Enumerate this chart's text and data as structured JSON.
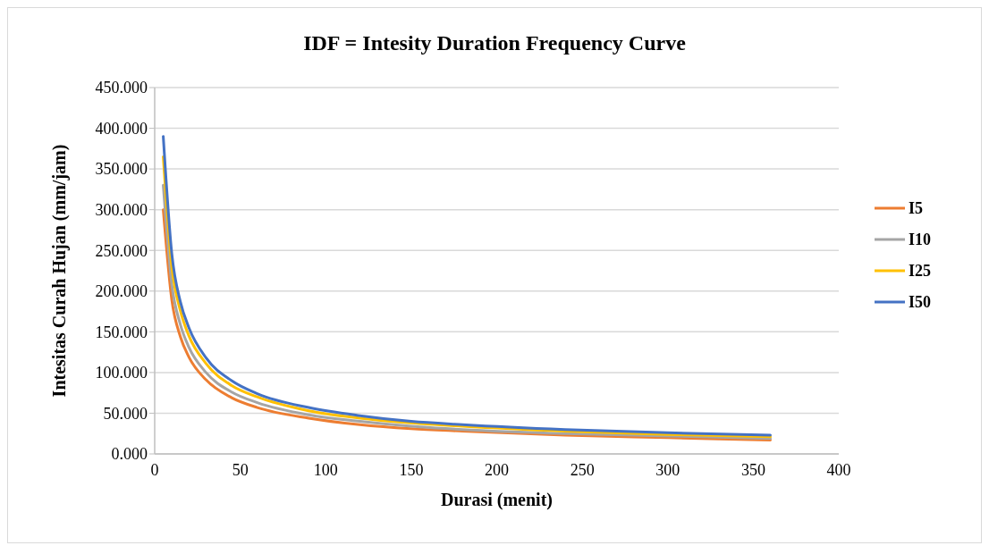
{
  "chart_data": {
    "type": "line",
    "title": "IDF = Intesity Duration Frequency Curve",
    "xlabel": "Durasi (menit)",
    "ylabel": "Intesitas Curah Hujan (mm/jam)",
    "x": [
      5,
      10,
      15,
      20,
      30,
      45,
      60,
      90,
      120,
      150,
      180,
      240,
      300,
      360
    ],
    "series": [
      {
        "name": "I5",
        "color": "#ed7d31",
        "values": [
          300,
          189,
          144,
          119,
          91,
          69,
          57,
          44,
          36,
          31,
          28,
          23,
          20,
          17
        ]
      },
      {
        "name": "I10",
        "color": "#a5a5a5",
        "values": [
          330,
          208,
          159,
          131,
          100,
          76,
          63,
          48,
          40,
          34,
          30,
          25,
          22,
          19
        ]
      },
      {
        "name": "I25",
        "color": "#ffc000",
        "values": [
          365,
          230,
          176,
          145,
          111,
          84,
          70,
          53,
          44,
          38,
          34,
          28,
          24,
          21
        ]
      },
      {
        "name": "I50",
        "color": "#4472c4",
        "values": [
          390,
          246,
          187,
          155,
          118,
          90,
          74,
          57,
          47,
          40,
          36,
          30,
          26,
          23
        ]
      }
    ],
    "xlim": [
      0,
      400
    ],
    "xticks": [
      0,
      50,
      100,
      150,
      200,
      250,
      300,
      350,
      400
    ],
    "ylim": [
      0,
      450
    ],
    "yticks": [
      {
        "value": 0,
        "label": "0.000"
      },
      {
        "value": 50,
        "label": "50.000"
      },
      {
        "value": 100,
        "label": "100.000"
      },
      {
        "value": 150,
        "label": "150.000"
      },
      {
        "value": 200,
        "label": "200.000"
      },
      {
        "value": 250,
        "label": "250.000"
      },
      {
        "value": 300,
        "label": "300.000"
      },
      {
        "value": 350,
        "label": "350.000"
      },
      {
        "value": 400,
        "label": "400.000"
      },
      {
        "value": 450,
        "label": "450.000"
      }
    ],
    "grid": "y",
    "legend": "right",
    "marker": "none",
    "line_style": "solid"
  }
}
